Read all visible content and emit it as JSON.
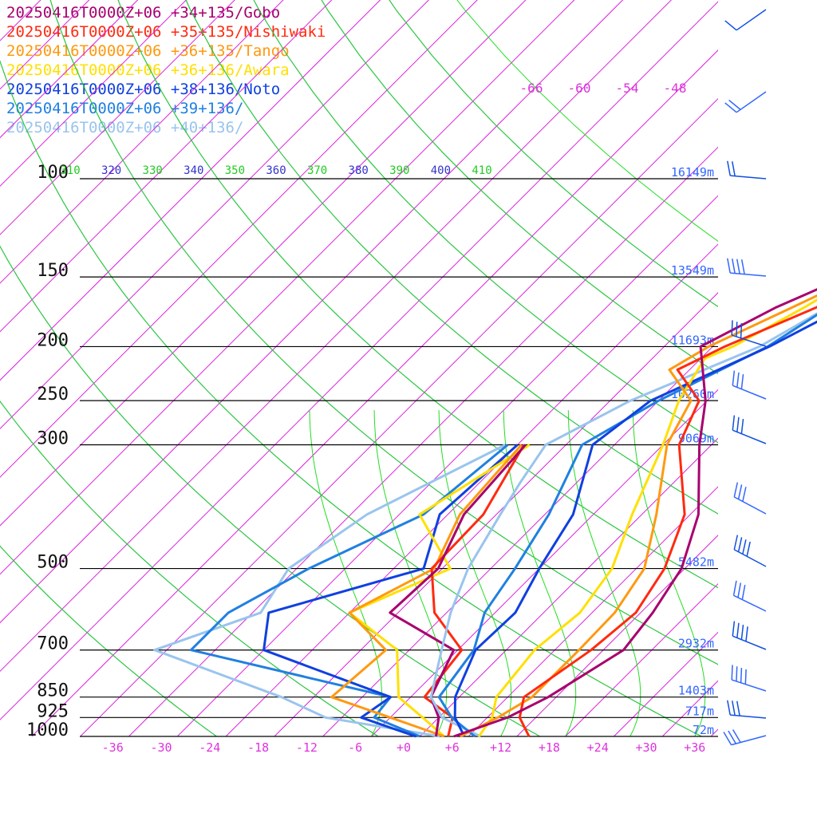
{
  "chart_data": {
    "type": "line",
    "title": "",
    "xlabel": "",
    "ylabel": "",
    "x_unit": "°C",
    "y_unit": "hPa",
    "p_range": [
      100,
      1000
    ],
    "y_scale": "log",
    "pressure_ticks": [
      100,
      150,
      200,
      250,
      300,
      500,
      700,
      850,
      925,
      1000
    ],
    "pressure_tick_labels": [
      "100",
      "150",
      "200",
      "250",
      "300",
      "500",
      "700",
      "850",
      "925",
      "1000"
    ],
    "temperature_ticks": [
      -36,
      -30,
      -24,
      -18,
      -12,
      -6,
      0,
      6,
      12,
      18,
      24,
      30,
      36
    ],
    "temperature_tick_labels": [
      "-36",
      "-30",
      "-24",
      "-18",
      "-12",
      "-6",
      "+0",
      "+6",
      "+12",
      "+18",
      "+24",
      "+30",
      "+36"
    ],
    "upper_temperature_labels": [
      "-66",
      "-60",
      "-54",
      "-48"
    ],
    "theta_labels": [
      "310",
      "320",
      "330",
      "340",
      "350",
      "360",
      "370",
      "380",
      "390",
      "400",
      "410"
    ],
    "height_labels": [
      {
        "p": 100,
        "label": "16149m"
      },
      {
        "p": 150,
        "label": "13549m"
      },
      {
        "p": 200,
        "label": "11693m"
      },
      {
        "p": 250,
        "label": "10260m"
      },
      {
        "p": 300,
        "label": "9069m"
      },
      {
        "p": 500,
        "label": "5482m"
      },
      {
        "p": 700,
        "label": "2932m"
      },
      {
        "p": 850,
        "label": "1403m"
      },
      {
        "p": 925,
        "label": "717m"
      },
      {
        "p": 1000,
        "label": "72m"
      }
    ],
    "series": [
      {
        "name": "20250416T0000Z+06 +34+135/Gobo",
        "color": "#a8006e",
        "temperature": [
          [
            1000,
            6.2
          ],
          [
            925,
            10.5
          ],
          [
            850,
            13
          ],
          [
            700,
            16.5
          ],
          [
            600,
            15.5
          ],
          [
            500,
            13.6
          ],
          [
            400,
            9
          ],
          [
            300,
            0.5
          ],
          [
            250,
            -4.2
          ],
          [
            200,
            -11.5
          ],
          [
            170,
            -7
          ],
          [
            140,
            0.5
          ],
          [
            120,
            5
          ],
          [
            100,
            12.5
          ],
          [
            80,
            20
          ],
          [
            68,
            26
          ],
          [
            58,
            36
          ],
          [
            52,
            39
          ]
        ],
        "dewpoint": [
          [
            1000,
            4
          ],
          [
            925,
            2
          ],
          [
            850,
            -1.5
          ],
          [
            700,
            -4.5
          ],
          [
            600,
            -17
          ],
          [
            500,
            -16.5
          ],
          [
            400,
            -20
          ],
          [
            300,
            -21
          ]
        ]
      },
      {
        "name": "20250416T0000Z+06 +35+135/Nishiwaki",
        "color": "#ff2a10",
        "temperature": [
          [
            1000,
            15.5
          ],
          [
            925,
            12
          ],
          [
            850,
            10
          ],
          [
            700,
            12.5
          ],
          [
            600,
            13.4
          ],
          [
            500,
            11.5
          ],
          [
            400,
            7.3
          ],
          [
            300,
            -2
          ],
          [
            250,
            -5
          ],
          [
            220,
            -11.5
          ],
          [
            200,
            -8.5
          ],
          [
            170,
            -2
          ],
          [
            140,
            3.2
          ],
          [
            120,
            8.5
          ],
          [
            100,
            13.5
          ],
          [
            80,
            21.5
          ],
          [
            66,
            27
          ],
          [
            58,
            35
          ],
          [
            52,
            39
          ]
        ],
        "dewpoint": [
          [
            1000,
            5.5
          ],
          [
            925,
            3.7
          ],
          [
            850,
            -2.3
          ],
          [
            700,
            -3.5
          ],
          [
            600,
            -11.5
          ],
          [
            500,
            -17.3
          ],
          [
            400,
            -17.6
          ],
          [
            300,
            -21.2
          ]
        ]
      },
      {
        "name": "20250416T0000Z+06 +36+135/Tango",
        "color": "#ff9910",
        "temperature": [
          [
            1000,
            7
          ],
          [
            925,
            9.3
          ],
          [
            850,
            11
          ],
          [
            700,
            11
          ],
          [
            600,
            10.8
          ],
          [
            500,
            9
          ],
          [
            400,
            3.8
          ],
          [
            300,
            -3.5
          ],
          [
            250,
            -6
          ],
          [
            220,
            -12.5
          ],
          [
            200,
            -10.5
          ],
          [
            170,
            -5
          ],
          [
            140,
            1.5
          ],
          [
            120,
            6.5
          ],
          [
            100,
            11.5
          ],
          [
            80,
            19.5
          ],
          [
            66,
            26
          ],
          [
            58,
            35
          ],
          [
            52,
            39
          ]
        ],
        "dewpoint": [
          [
            1000,
            5
          ],
          [
            925,
            -4
          ],
          [
            850,
            -13.8
          ],
          [
            700,
            -12.9
          ],
          [
            600,
            -22
          ],
          [
            500,
            -17
          ],
          [
            400,
            -20.5
          ],
          [
            300,
            -21.5
          ]
        ]
      },
      {
        "name": "20250416T0000Z+06 +36+136/Awara",
        "color": "#ffe000",
        "temperature": [
          [
            1000,
            9.3
          ],
          [
            925,
            8.6
          ],
          [
            850,
            6.6
          ],
          [
            700,
            5.5
          ],
          [
            600,
            6.5
          ],
          [
            500,
            5
          ],
          [
            400,
            0.8
          ],
          [
            300,
            -4
          ],
          [
            250,
            -7.5
          ],
          [
            210,
            -9.5
          ],
          [
            200,
            -7.5
          ],
          [
            170,
            -3.5
          ],
          [
            140,
            0.5
          ],
          [
            120,
            4.5
          ],
          [
            100,
            8.8
          ],
          [
            80,
            17.5
          ],
          [
            66,
            24.5
          ],
          [
            58,
            34
          ],
          [
            52,
            38
          ]
        ],
        "dewpoint": [
          [
            1000,
            5
          ],
          [
            925,
            0
          ],
          [
            850,
            -5.5
          ],
          [
            700,
            -11.5
          ],
          [
            600,
            -22
          ],
          [
            500,
            -15
          ],
          [
            400,
            -25.5
          ],
          [
            300,
            -20.5
          ]
        ]
      },
      {
        "name": "20250416T0000Z+06 +38+136/Noto",
        "color": "#1040e0",
        "temperature": [
          [
            1000,
            7.5
          ],
          [
            925,
            4
          ],
          [
            850,
            1.5
          ],
          [
            700,
            -1.8
          ],
          [
            600,
            -1.5
          ],
          [
            500,
            -4
          ],
          [
            400,
            -6.5
          ],
          [
            300,
            -12.7
          ],
          [
            250,
            -11
          ],
          [
            200,
            -3
          ],
          [
            170,
            1.5
          ],
          [
            140,
            2.8
          ],
          [
            120,
            6
          ],
          [
            100,
            8.5
          ],
          [
            80,
            17
          ],
          [
            66,
            23.5
          ],
          [
            58,
            33
          ],
          [
            52,
            37
          ]
        ],
        "dewpoint": [
          [
            1000,
            1.5
          ],
          [
            925,
            -7.6
          ],
          [
            850,
            -6.5
          ],
          [
            700,
            -28
          ],
          [
            600,
            -32
          ],
          [
            500,
            -18.3
          ],
          [
            400,
            -23
          ],
          [
            300,
            -22
          ]
        ]
      },
      {
        "name": "20250416T0000Z+06 +39+136/",
        "color": "#2080e0",
        "temperature": [
          [
            1000,
            8.8
          ],
          [
            925,
            3.6
          ],
          [
            850,
            -0.5
          ],
          [
            700,
            -2
          ],
          [
            600,
            -5.3
          ],
          [
            500,
            -7
          ],
          [
            400,
            -9.5
          ],
          [
            300,
            -14
          ],
          [
            250,
            -10
          ],
          [
            200,
            -3.2
          ],
          [
            170,
            -0.5
          ],
          [
            150,
            1
          ],
          [
            140,
            0.8
          ],
          [
            120,
            4
          ],
          [
            100,
            7.2
          ],
          [
            80,
            15.5
          ],
          [
            66,
            22
          ],
          [
            58,
            32
          ],
          [
            52,
            36.5
          ]
        ],
        "dewpoint": [
          [
            1000,
            2
          ],
          [
            925,
            -6
          ],
          [
            850,
            -6.5
          ],
          [
            700,
            -37
          ],
          [
            600,
            -37
          ],
          [
            500,
            -32.5
          ],
          [
            400,
            -25
          ],
          [
            300,
            -23.2
          ]
        ]
      },
      {
        "name": "20250416T0000Z+06 +40+136/",
        "color": "#99c4ee",
        "temperature": [
          [
            1000,
            9.5
          ],
          [
            925,
            2.4
          ],
          [
            850,
            -1.5
          ],
          [
            700,
            -6
          ],
          [
            600,
            -9.5
          ],
          [
            500,
            -12.8
          ],
          [
            400,
            -15.5
          ],
          [
            350,
            -17
          ],
          [
            300,
            -18.5
          ],
          [
            250,
            -13.5
          ],
          [
            200,
            -4.2
          ],
          [
            170,
            -0.6
          ],
          [
            150,
            2
          ],
          [
            140,
            1.8
          ],
          [
            120,
            4.2
          ],
          [
            100,
            6.4
          ],
          [
            80,
            14.5
          ],
          [
            66,
            21
          ],
          [
            58,
            31
          ],
          [
            52,
            35.5
          ]
        ],
        "dewpoint": [
          [
            1000,
            4.5
          ],
          [
            925,
            -12
          ],
          [
            850,
            -20
          ],
          [
            700,
            -41.5
          ],
          [
            600,
            -33
          ],
          [
            500,
            -35
          ],
          [
            400,
            -32
          ],
          [
            300,
            -23.5
          ]
        ]
      }
    ],
    "wind_colors": [
      "#1050e0",
      "#3366ff"
    ],
    "isotherm_color": "#dd22dd",
    "dry_adiabat_color": "#3322dd",
    "moist_adiabat_color": "#22dd22",
    "theta_label_colors": [
      "#22cc22",
      "#3333cc"
    ]
  }
}
